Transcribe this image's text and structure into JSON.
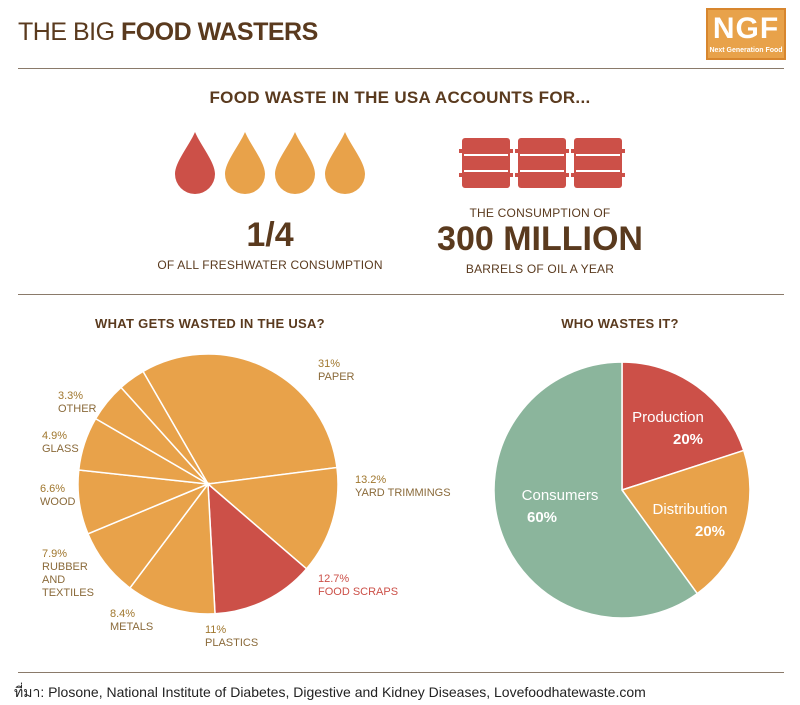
{
  "header": {
    "title_light": "THE BIG",
    "title_bold": "FOOD WASTERS",
    "logo_text": "NGF",
    "logo_subtext": "Next Generation Food"
  },
  "headline": "FOOD WASTE IN THE USA ACCOUNTS FOR...",
  "stats": {
    "water": {
      "value": "1/4",
      "caption": "OF ALL FRESHWATER CONSUMPTION",
      "drops_total": 4,
      "drops_highlighted": 1
    },
    "oil": {
      "pre": "THE CONSUMPTION OF",
      "value": "300 MILLION",
      "caption": "BARRELS OF OIL A YEAR",
      "barrels": 3
    }
  },
  "colors": {
    "orange": "#e8a24a",
    "red": "#cc5048",
    "green": "#8bb59c",
    "brown": "#5a3a1e"
  },
  "chart_data": [
    {
      "type": "pie",
      "title": "WHAT GETS WASTED IN THE USA?",
      "slices": [
        {
          "label": "PAPER",
          "pct_label": "31%",
          "value": 31,
          "color": "#e8a24a"
        },
        {
          "label": "YARD TRIMMINGS",
          "pct_label": "13.2%",
          "value": 13.2,
          "color": "#e8a24a"
        },
        {
          "label": "FOOD SCRAPS",
          "pct_label": "12.7%",
          "value": 12.7,
          "color": "#cc5048"
        },
        {
          "label": "PLASTICS",
          "pct_label": "11%",
          "value": 11,
          "color": "#e8a24a"
        },
        {
          "label": "METALS",
          "pct_label": "8.4%",
          "value": 8.4,
          "color": "#e8a24a"
        },
        {
          "label": "RUBBER AND TEXTILES",
          "pct_label": "7.9%",
          "value": 7.9,
          "color": "#e8a24a"
        },
        {
          "label": "WOOD",
          "pct_label": "6.6%",
          "value": 6.6,
          "color": "#e8a24a"
        },
        {
          "label": "GLASS",
          "pct_label": "4.9%",
          "value": 4.9,
          "color": "#e8a24a"
        },
        {
          "label": "OTHER",
          "pct_label": "3.3%",
          "value": 3.3,
          "color": "#e8a24a"
        }
      ]
    },
    {
      "type": "pie",
      "title": "WHO WASTES IT?",
      "slices": [
        {
          "label": "Production",
          "pct_label": "20%",
          "value": 20,
          "color": "#cc5048"
        },
        {
          "label": "Distribution",
          "pct_label": "20%",
          "value": 20,
          "color": "#e8a24a"
        },
        {
          "label": "Consumers",
          "pct_label": "60%",
          "value": 60,
          "color": "#8bb59c"
        }
      ]
    }
  ],
  "source": "ที่มา: Plosone, National Institute of Diabetes, Digestive and Kidney Diseases, Lovefoodhatewaste.com"
}
